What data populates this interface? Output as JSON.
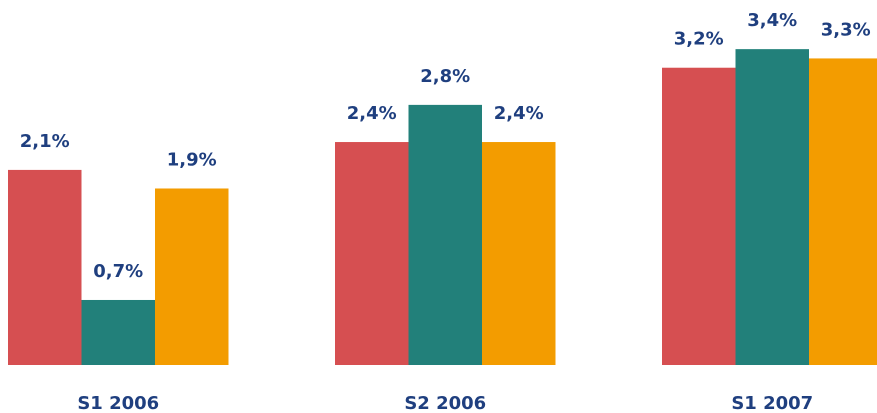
{
  "chart_data": {
    "type": "bar",
    "categories": [
      "S1 2006",
      "S2 2006",
      "S1 2007"
    ],
    "series": [
      {
        "color": "#d64f51",
        "values": [
          2.1,
          2.4,
          3.2
        ],
        "value_labels": [
          "2,1%",
          "2,4%",
          "3,2%"
        ]
      },
      {
        "color": "#22807a",
        "values": [
          0.7,
          2.8,
          3.4
        ],
        "value_labels": [
          "0,7%",
          "2,8%",
          "3,4%"
        ]
      },
      {
        "color": "#f39c00",
        "values": [
          1.9,
          2.4,
          3.3
        ],
        "value_labels": [
          "1,9%",
          "2,4%",
          "3,3%"
        ]
      }
    ]
  }
}
